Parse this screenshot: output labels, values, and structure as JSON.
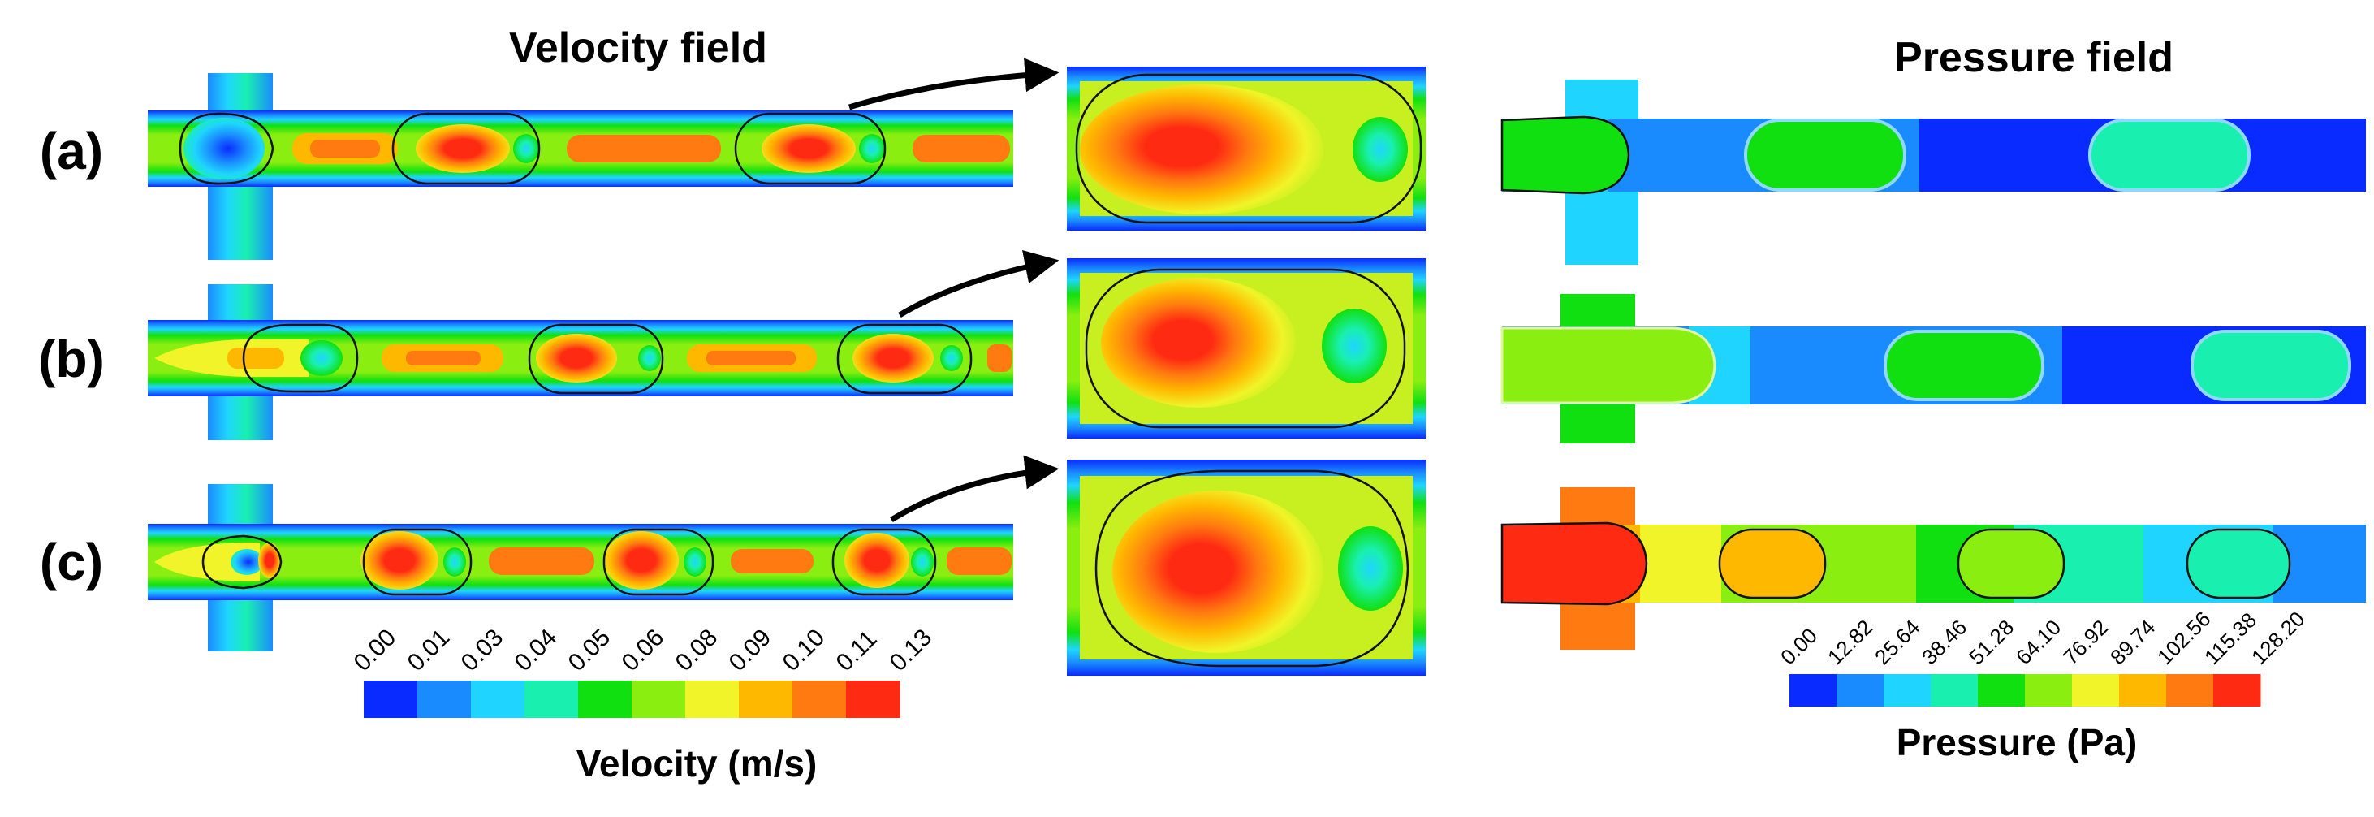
{
  "titles": {
    "velocity": "Velocity field",
    "pressure": "Pressure field"
  },
  "rows": [
    {
      "label": "(a)"
    },
    {
      "label": "(b)"
    },
    {
      "label": "(c)"
    }
  ],
  "velocity_scale": {
    "title": "Velocity (m/s)",
    "ticks": [
      "0.00",
      "0.01",
      "0.03",
      "0.04",
      "0.05",
      "0.06",
      "0.08",
      "0.09",
      "0.10",
      "0.11",
      "0.13"
    ],
    "colors": [
      "#0a2bff",
      "#1a8bff",
      "#1fd5ff",
      "#19f0b0",
      "#10e010",
      "#8aee10",
      "#f0f428",
      "#ffb800",
      "#ff7a10",
      "#ff2a12"
    ]
  },
  "pressure_scale": {
    "title": "Pressure (Pa)",
    "ticks": [
      "0.00",
      "12.82",
      "25.64",
      "38.46",
      "51.28",
      "64.10",
      "76.92",
      "89.74",
      "102.56",
      "115.38",
      "128.20"
    ],
    "colors": [
      "#0a2bff",
      "#1a8bff",
      "#1fd5ff",
      "#19f0b0",
      "#10e010",
      "#8aee10",
      "#f0f428",
      "#ffb800",
      "#ff7a10",
      "#ff2a12"
    ]
  },
  "colors": {
    "outline": "#111111",
    "arrow": "#000000",
    "text": "#000000"
  }
}
